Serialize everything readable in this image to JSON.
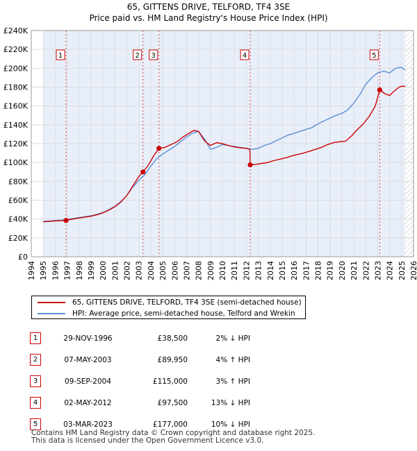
{
  "title_line1": "65, GITTENS DRIVE, TELFORD, TF4 3SE",
  "title_line2": "Price paid vs. HM Land Registry's House Price Index (HPI)",
  "chart_data": {
    "type": "line",
    "title": "65, GITTENS DRIVE, TELFORD, TF4 3SE — Price paid vs. HM Land Registry's House Price Index (HPI)",
    "xlim": [
      1994,
      2026
    ],
    "ylim": [
      0,
      240000
    ],
    "x_ticks": [
      1994,
      1995,
      1996,
      1997,
      1998,
      1999,
      2000,
      2001,
      2002,
      2003,
      2004,
      2005,
      2006,
      2007,
      2008,
      2009,
      2010,
      2011,
      2012,
      2013,
      2014,
      2015,
      2016,
      2017,
      2018,
      2019,
      2020,
      2021,
      2022,
      2023,
      2024,
      2025,
      2026
    ],
    "y_ticks": [
      0,
      20000,
      40000,
      60000,
      80000,
      100000,
      120000,
      140000,
      160000,
      180000,
      200000,
      220000,
      240000
    ],
    "y_tick_labels": [
      "£0",
      "£20K",
      "£40K",
      "£60K",
      "£80K",
      "£100K",
      "£120K",
      "£140K",
      "£160K",
      "£180K",
      "£200K",
      "£220K",
      "£240K"
    ],
    "data_range": [
      1995.0,
      2025.3
    ],
    "series": [
      {
        "name": "65, GITTENS DRIVE, TELFORD, TF4 3SE (semi-detached house)",
        "color": "#cc0000",
        "x": [
          1995.0,
          1995.5,
          1996.0,
          1996.5,
          1996.91,
          1997.5,
          1998.0,
          1998.5,
          1999.0,
          1999.5,
          2000.0,
          2000.5,
          2001.0,
          2001.5,
          2002.0,
          2002.5,
          2003.0,
          2003.35,
          2003.8,
          2004.2,
          2004.69,
          2005.2,
          2005.7,
          2006.2,
          2006.7,
          2007.2,
          2007.6,
          2008.0,
          2008.5,
          2009.0,
          2009.5,
          2010.0,
          2010.5,
          2011.0,
          2011.5,
          2012.0,
          2012.3,
          2012.33,
          2012.8,
          2013.3,
          2013.8,
          2014.3,
          2014.8,
          2015.3,
          2015.8,
          2016.3,
          2016.8,
          2017.3,
          2017.8,
          2018.3,
          2018.8,
          2019.3,
          2019.8,
          2020.3,
          2020.8,
          2021.3,
          2021.8,
          2022.3,
          2022.8,
          2023.17,
          2023.6,
          2024.0,
          2024.4,
          2024.8,
          2025.1,
          2025.3
        ],
        "y": [
          37000,
          37500,
          38000,
          38200,
          38500,
          40000,
          41000,
          42000,
          43000,
          44500,
          46500,
          49500,
          53000,
          58000,
          65000,
          75000,
          85000,
          89950,
          97000,
          106000,
          115000,
          116000,
          119000,
          122000,
          127000,
          131000,
          134000,
          133000,
          123000,
          118000,
          121000,
          120000,
          118000,
          116500,
          115500,
          115000,
          114000,
          97500,
          98000,
          99000,
          100000,
          102000,
          103500,
          105000,
          107000,
          108500,
          110000,
          112000,
          114000,
          116000,
          119000,
          121000,
          122000,
          122500,
          128000,
          135000,
          141000,
          149000,
          160000,
          177000,
          173000,
          171000,
          176000,
          180000,
          181000,
          180500
        ]
      },
      {
        "name": "HPI: Average price, semi-detached house, Telford and Wrekin",
        "color": "#5b8fd6",
        "x": [
          1995.0,
          1995.5,
          1996.0,
          1996.5,
          1997.0,
          1997.5,
          1998.0,
          1998.5,
          1999.0,
          1999.5,
          2000.0,
          2000.5,
          2001.0,
          2001.5,
          2002.0,
          2002.5,
          2003.0,
          2003.5,
          2004.0,
          2004.5,
          2005.0,
          2005.5,
          2006.0,
          2006.5,
          2007.0,
          2007.5,
          2008.0,
          2008.5,
          2009.0,
          2009.5,
          2010.0,
          2010.5,
          2011.0,
          2011.5,
          2012.0,
          2012.5,
          2013.0,
          2013.5,
          2014.0,
          2014.5,
          2015.0,
          2015.5,
          2016.0,
          2016.5,
          2017.0,
          2017.5,
          2018.0,
          2018.5,
          2019.0,
          2019.5,
          2020.0,
          2020.5,
          2021.0,
          2021.5,
          2022.0,
          2022.5,
          2023.0,
          2023.5,
          2024.0,
          2024.5,
          2025.0,
          2025.3
        ],
        "y": [
          37500,
          38000,
          38500,
          38800,
          39500,
          40500,
          41500,
          42500,
          43500,
          45000,
          47000,
          50000,
          53500,
          58500,
          65000,
          74000,
          81000,
          87000,
          96000,
          104000,
          109000,
          113000,
          117000,
          122000,
          127000,
          131000,
          133000,
          125000,
          114000,
          116000,
          119000,
          118000,
          117000,
          116000,
          115000,
          114000,
          115000,
          118000,
          120000,
          123000,
          126000,
          129000,
          131000,
          133000,
          135000,
          137000,
          141000,
          144000,
          147000,
          150000,
          152000,
          156000,
          163000,
          172000,
          183000,
          190000,
          195000,
          197000,
          195000,
          200000,
          201000,
          198000
        ]
      }
    ],
    "sales": [
      {
        "num": "1",
        "x": 1996.91,
        "y": 38500
      },
      {
        "num": "2",
        "x": 2003.35,
        "y": 89950
      },
      {
        "num": "3",
        "x": 2004.69,
        "y": 115000
      },
      {
        "num": "4",
        "x": 2012.33,
        "y": 97500
      },
      {
        "num": "5",
        "x": 2023.17,
        "y": 177000
      }
    ]
  },
  "legend": {
    "property": "65, GITTENS DRIVE, TELFORD, TF4 3SE (semi-detached house)",
    "hpi": "HPI: Average price, semi-detached house, Telford and Wrekin"
  },
  "transactions": [
    {
      "num": "1",
      "date": "29-NOV-1996",
      "price": "£38,500",
      "pct": "2% ↓ HPI"
    },
    {
      "num": "2",
      "date": "07-MAY-2003",
      "price": "£89,950",
      "pct": "4% ↑ HPI"
    },
    {
      "num": "3",
      "date": "09-SEP-2004",
      "price": "£115,000",
      "pct": "3% ↑ HPI"
    },
    {
      "num": "4",
      "date": "02-MAY-2012",
      "price": "£97,500",
      "pct": "13% ↓ HPI"
    },
    {
      "num": "5",
      "date": "03-MAR-2023",
      "price": "£177,000",
      "pct": "10% ↓ HPI"
    }
  ],
  "footer": {
    "line1": "Contains HM Land Registry data © Crown copyright and database right 2025.",
    "line2": "This data is licensed under the Open Government Licence v3.0."
  }
}
